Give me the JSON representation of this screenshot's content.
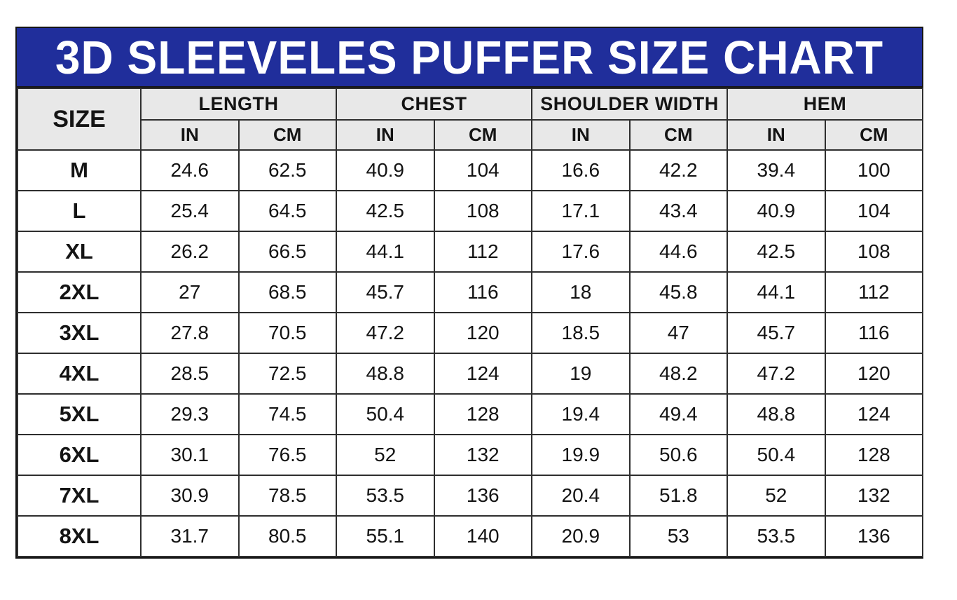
{
  "banner": {
    "title": "3D SLEEVELES PUFFER SIZE CHART",
    "bg_color": "#202e9b",
    "text_color": "#ffffff"
  },
  "table": {
    "size_header": "SIZE",
    "groups": [
      "LENGTH",
      "CHEST",
      "SHOULDER WIDTH",
      "HEM"
    ],
    "units": [
      "IN",
      "CM"
    ],
    "header_bg": "#e8e8e8",
    "border_color": "#2e2e2e",
    "rows": [
      {
        "size": "M",
        "values": [
          "24.6",
          "62.5",
          "40.9",
          "104",
          "16.6",
          "42.2",
          "39.4",
          "100"
        ]
      },
      {
        "size": "L",
        "values": [
          "25.4",
          "64.5",
          "42.5",
          "108",
          "17.1",
          "43.4",
          "40.9",
          "104"
        ]
      },
      {
        "size": "XL",
        "values": [
          "26.2",
          "66.5",
          "44.1",
          "112",
          "17.6",
          "44.6",
          "42.5",
          "108"
        ]
      },
      {
        "size": "2XL",
        "values": [
          "27",
          "68.5",
          "45.7",
          "116",
          "18",
          "45.8",
          "44.1",
          "112"
        ]
      },
      {
        "size": "3XL",
        "values": [
          "27.8",
          "70.5",
          "47.2",
          "120",
          "18.5",
          "47",
          "45.7",
          "116"
        ]
      },
      {
        "size": "4XL",
        "values": [
          "28.5",
          "72.5",
          "48.8",
          "124",
          "19",
          "48.2",
          "47.2",
          "120"
        ]
      },
      {
        "size": "5XL",
        "values": [
          "29.3",
          "74.5",
          "50.4",
          "128",
          "19.4",
          "49.4",
          "48.8",
          "124"
        ]
      },
      {
        "size": "6XL",
        "values": [
          "30.1",
          "76.5",
          "52",
          "132",
          "19.9",
          "50.6",
          "50.4",
          "128"
        ]
      },
      {
        "size": "7XL",
        "values": [
          "30.9",
          "78.5",
          "53.5",
          "136",
          "20.4",
          "51.8",
          "52",
          "132"
        ]
      },
      {
        "size": "8XL",
        "values": [
          "31.7",
          "80.5",
          "55.1",
          "140",
          "20.9",
          "53",
          "53.5",
          "136"
        ]
      }
    ]
  },
  "chart_data": {
    "type": "table",
    "title": "3D SLEEVELES PUFFER SIZE CHART",
    "columns": [
      "SIZE",
      "LENGTH IN",
      "LENGTH CM",
      "CHEST IN",
      "CHEST CM",
      "SHOULDER WIDTH IN",
      "SHOULDER WIDTH CM",
      "HEM IN",
      "HEM CM"
    ],
    "rows": [
      [
        "M",
        24.6,
        62.5,
        40.9,
        104,
        16.6,
        42.2,
        39.4,
        100
      ],
      [
        "L",
        25.4,
        64.5,
        42.5,
        108,
        17.1,
        43.4,
        40.9,
        104
      ],
      [
        "XL",
        26.2,
        66.5,
        44.1,
        112,
        17.6,
        44.6,
        42.5,
        108
      ],
      [
        "2XL",
        27,
        68.5,
        45.7,
        116,
        18,
        45.8,
        44.1,
        112
      ],
      [
        "3XL",
        27.8,
        70.5,
        47.2,
        120,
        18.5,
        47,
        45.7,
        116
      ],
      [
        "4XL",
        28.5,
        72.5,
        48.8,
        124,
        19,
        48.2,
        47.2,
        120
      ],
      [
        "5XL",
        29.3,
        74.5,
        50.4,
        128,
        19.4,
        49.4,
        48.8,
        124
      ],
      [
        "6XL",
        30.1,
        76.5,
        52,
        132,
        19.9,
        50.6,
        50.4,
        128
      ],
      [
        "7XL",
        30.9,
        78.5,
        53.5,
        136,
        20.4,
        51.8,
        52,
        132
      ],
      [
        "8XL",
        31.7,
        80.5,
        55.1,
        140,
        20.9,
        53,
        53.5,
        136
      ]
    ]
  }
}
